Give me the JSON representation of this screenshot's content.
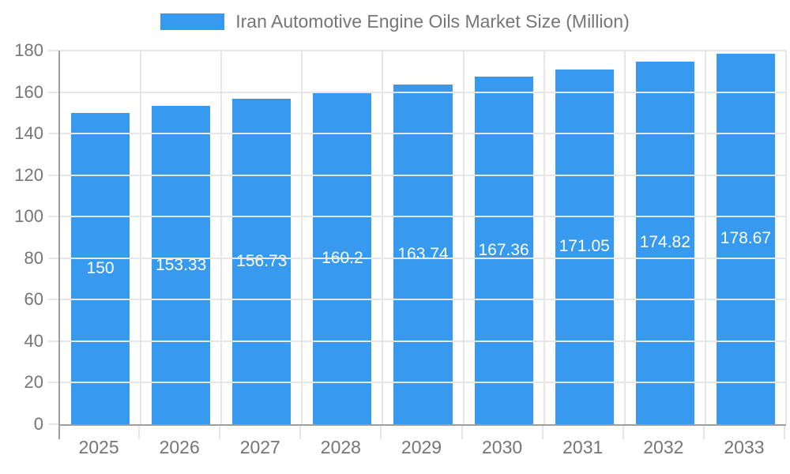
{
  "chart_data": {
    "type": "bar",
    "title": "Iran Automotive Engine Oils Market Size (Million)",
    "categories": [
      "2025",
      "2026",
      "2027",
      "2028",
      "2029",
      "2030",
      "2031",
      "2032",
      "2033"
    ],
    "values": [
      150,
      153.33,
      156.73,
      160.2,
      163.74,
      167.36,
      171.05,
      174.82,
      178.67
    ],
    "bar_labels": [
      "150",
      "153.33",
      "156.73",
      "160.2",
      "163.74",
      "167.36",
      "171.05",
      "174.82",
      "178.67"
    ],
    "ylim": [
      0,
      180
    ],
    "ytick_interval": 20,
    "yticks": [
      "0",
      "20",
      "40",
      "60",
      "80",
      "100",
      "120",
      "140",
      "160",
      "180"
    ],
    "xlabel": "",
    "ylabel": "",
    "grid": true,
    "legend_position": "top-center",
    "colors": {
      "bar": "#389AEE",
      "bar_label": "#ffffff",
      "axis_text": "#757575",
      "grid": "#e6e6e6",
      "axis_line": "#9e9e9e",
      "background": "#ffffff"
    }
  }
}
